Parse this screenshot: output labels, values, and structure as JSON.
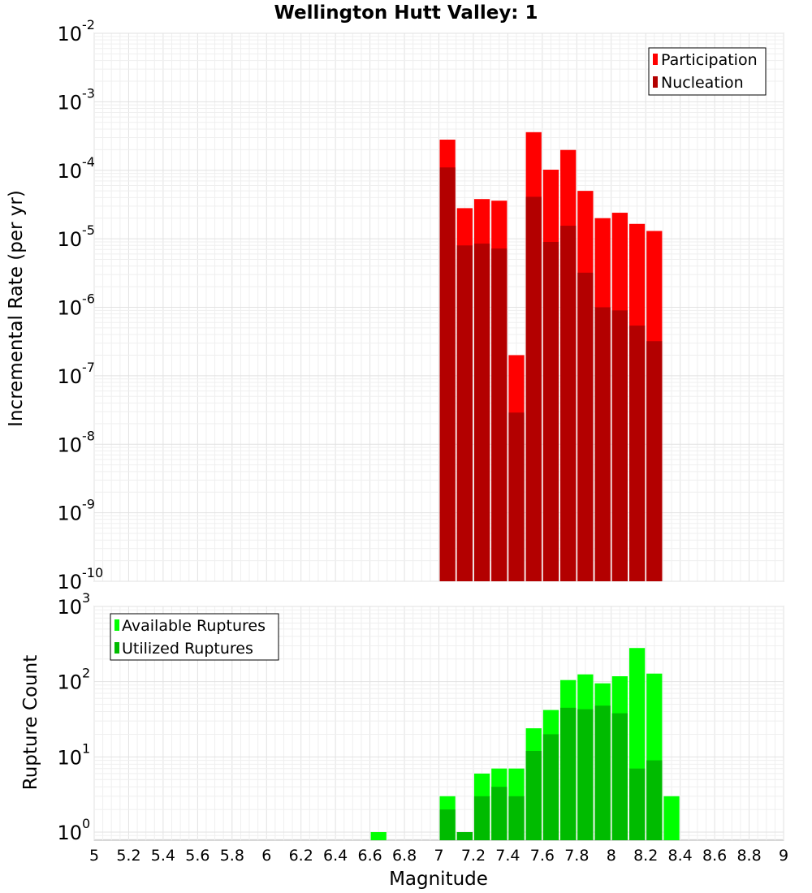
{
  "chart_data": [
    {
      "type": "bar",
      "title": "Wellington Hutt Valley: 1",
      "xlabel": "Magnitude",
      "ylabel": "Incremental Rate (per yr)",
      "y_scale": "log",
      "ylim": [
        1e-10,
        0.01
      ],
      "xlim": [
        5,
        9
      ],
      "grid": true,
      "legend_position": "top-right",
      "x_ticks": [
        "5",
        "5.2",
        "5.4",
        "5.6",
        "5.8",
        "6",
        "6.2",
        "6.4",
        "6.6",
        "6.8",
        "7",
        "7.2",
        "7.4",
        "7.6",
        "7.8",
        "8",
        "8.2",
        "8.4",
        "8.6",
        "8.8",
        "9"
      ],
      "y_ticks": [
        {
          "base": "10",
          "exp": "-10"
        },
        {
          "base": "10",
          "exp": "-9"
        },
        {
          "base": "10",
          "exp": "-8"
        },
        {
          "base": "10",
          "exp": "-7"
        },
        {
          "base": "10",
          "exp": "-6"
        },
        {
          "base": "10",
          "exp": "-5"
        },
        {
          "base": "10",
          "exp": "-4"
        },
        {
          "base": "10",
          "exp": "-3"
        },
        {
          "base": "10",
          "exp": "-2"
        }
      ],
      "x": [
        7.05,
        7.15,
        7.25,
        7.35,
        7.45,
        7.55,
        7.65,
        7.75,
        7.85,
        7.95,
        8.05,
        8.15,
        8.25
      ],
      "series": [
        {
          "name": "Participation",
          "color": "#ff0000",
          "values": [
            0.00028,
            2.8e-05,
            3.8e-05,
            3.6e-05,
            2e-07,
            0.00036,
            0.000102,
            0.000198,
            5e-05,
            2e-05,
            2.4e-05,
            1.65e-05,
            1.3e-05
          ]
        },
        {
          "name": "Nucleation",
          "color": "#b30000",
          "values": [
            0.00011,
            8e-06,
            8.5e-06,
            7.2e-06,
            2.9e-08,
            4.1e-05,
            9e-06,
            1.55e-05,
            3.2e-06,
            1e-06,
            9e-07,
            5.4e-07,
            3.2e-07
          ]
        }
      ]
    },
    {
      "type": "bar",
      "xlabel": "Magnitude",
      "ylabel": "Rupture Count",
      "y_scale": "log",
      "ylim": [
        0.78,
        1000
      ],
      "xlim": [
        5,
        9
      ],
      "grid": true,
      "legend_position": "top-left",
      "y_ticks": [
        {
          "base": "10",
          "exp": "0",
          "value": 1
        },
        {
          "base": "10",
          "exp": "1",
          "value": 10
        },
        {
          "base": "10",
          "exp": "2",
          "value": 100
        },
        {
          "base": "10",
          "exp": "3",
          "value": 1000
        }
      ],
      "x": [
        6.65,
        7.05,
        7.15,
        7.25,
        7.35,
        7.45,
        7.55,
        7.65,
        7.75,
        7.85,
        7.95,
        8.05,
        8.15,
        8.25,
        8.35
      ],
      "series": [
        {
          "name": "Available Ruptures",
          "color": "#00ff00",
          "values": [
            1,
            3,
            1,
            6,
            7,
            7,
            24,
            42,
            105,
            125,
            95,
            118,
            280,
            128,
            3
          ]
        },
        {
          "name": "Utilized Ruptures",
          "color": "#00bb00",
          "values": [
            0,
            2,
            1,
            3,
            4,
            3,
            12,
            20,
            45,
            43,
            48,
            38,
            7,
            9,
            0
          ]
        }
      ]
    }
  ]
}
